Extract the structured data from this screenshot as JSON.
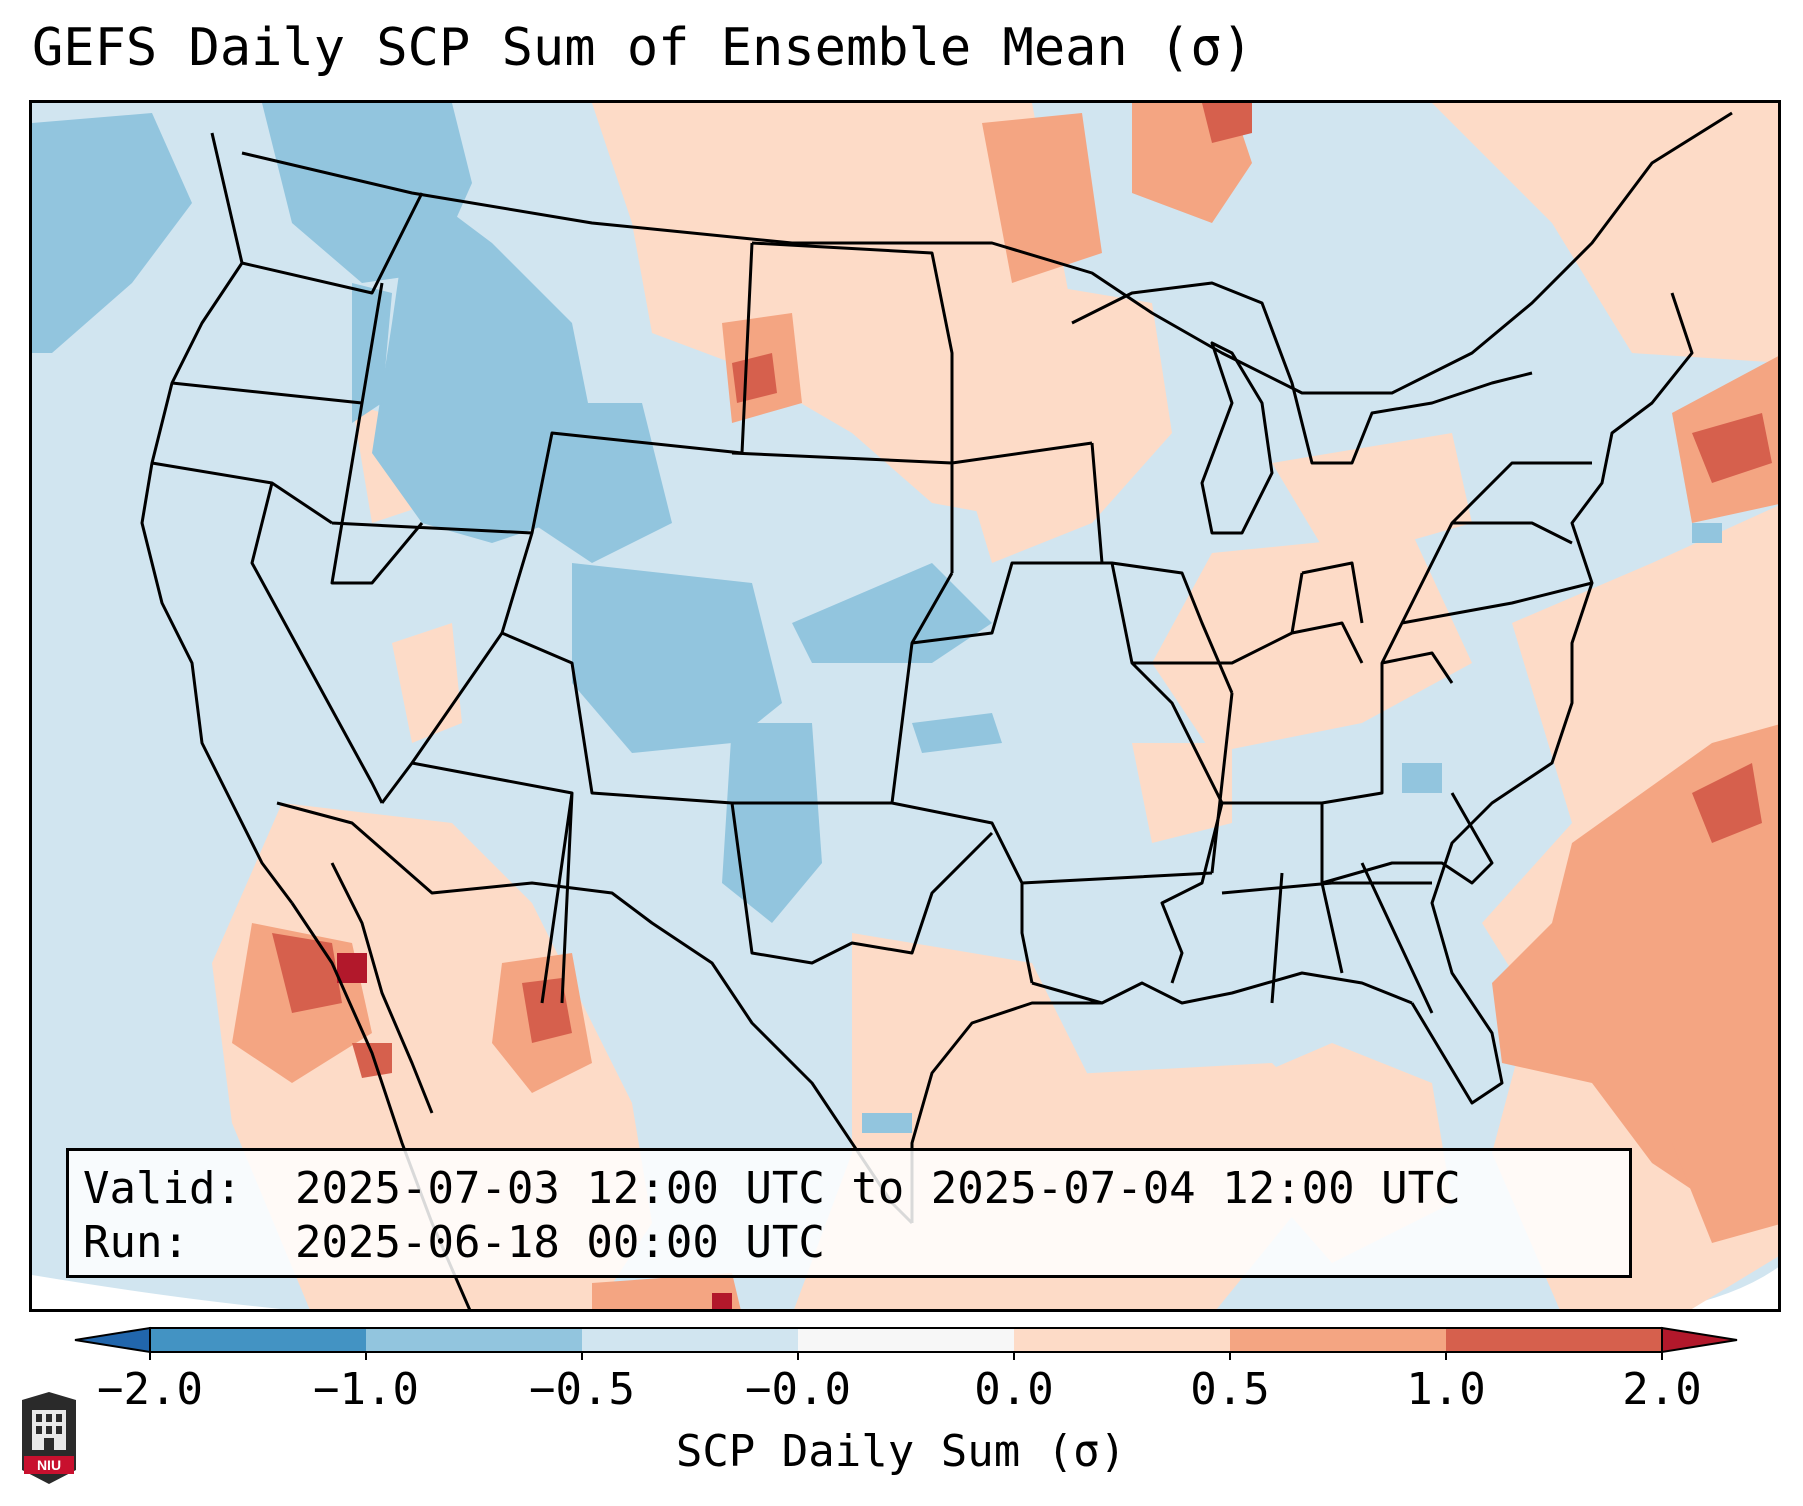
{
  "title": "GEFS Daily SCP Sum of Ensemble Mean (σ)",
  "info": {
    "valid_label": "Valid:",
    "valid_value": "2025-07-03 12:00 UTC to 2025-07-04 12:00 UTC",
    "run_label": "Run:",
    "run_value": "2025-06-18 00:00 UTC"
  },
  "colorbar": {
    "label": "SCP Daily Sum (σ)",
    "ticks": [
      "−2.0",
      "−1.0",
      "−0.5",
      "−0.0",
      "0.0",
      "0.5",
      "1.0",
      "2.0"
    ],
    "bin_colors": [
      "#4393c3",
      "#92c5de",
      "#d1e5f0",
      "#f7f7f7",
      "#fddbc7",
      "#f4a582",
      "#d6604d"
    ],
    "under_color": "#2166ac",
    "over_color": "#b2182b"
  },
  "logo": {
    "text": "NIU",
    "icon": "niu-shield-logo-icon"
  }
}
